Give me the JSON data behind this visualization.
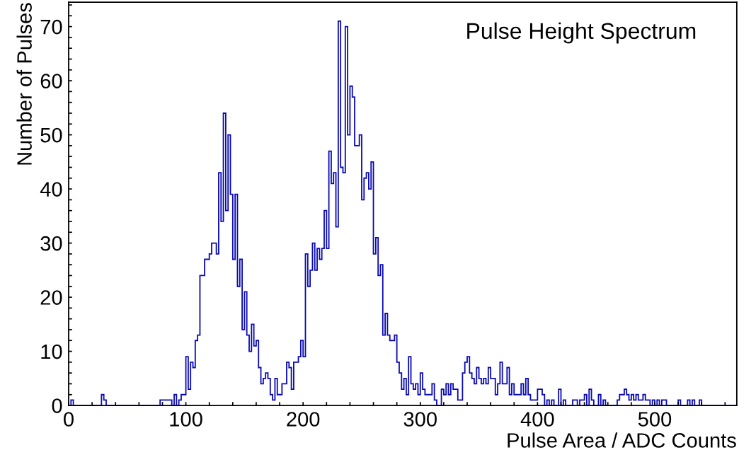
{
  "chart_data": {
    "type": "histogram",
    "title": "Pulse Height Spectrum",
    "xlabel": "Pulse Area / ADC Counts",
    "ylabel": "Number of Pulses",
    "color": "#0a0ab4",
    "bins": [
      0,
      2,
      4,
      6,
      8,
      10,
      12,
      14,
      16,
      18,
      20,
      22,
      24,
      26,
      28,
      30,
      32,
      34,
      36,
      38,
      40,
      42,
      44,
      46,
      48,
      50,
      52,
      54,
      56,
      58,
      60,
      62,
      64,
      66,
      68,
      70,
      72,
      74,
      76,
      78,
      80,
      82,
      84,
      86,
      88,
      90,
      92,
      94,
      96,
      98,
      100,
      102,
      104,
      106,
      108,
      110,
      112,
      114,
      116,
      118,
      120,
      122,
      124,
      126,
      128,
      130,
      132,
      134,
      136,
      138,
      140,
      142,
      144,
      146,
      148,
      150,
      152,
      154,
      156,
      158,
      160,
      162,
      164,
      166,
      168,
      170,
      172,
      174,
      176,
      178,
      180,
      182,
      184,
      186,
      188,
      190,
      192,
      194,
      196,
      198,
      200,
      202,
      204,
      206,
      208,
      210,
      212,
      214,
      216,
      218,
      220,
      222,
      224,
      226,
      228,
      230,
      232,
      234,
      236,
      238,
      240,
      242,
      244,
      246,
      248,
      250,
      252,
      254,
      256,
      258,
      260,
      262,
      264,
      266,
      268,
      270,
      272,
      274,
      276,
      278,
      280,
      282,
      284,
      286,
      288,
      290,
      292,
      294,
      296,
      298,
      300,
      302,
      304,
      306,
      308,
      310,
      312,
      314,
      316,
      318,
      320,
      322,
      324,
      326,
      328,
      330,
      332,
      334,
      336,
      338,
      340,
      342,
      344,
      346,
      348,
      350,
      352,
      354,
      356,
      358,
      360,
      362,
      364,
      366,
      368,
      370,
      372,
      374,
      376,
      378,
      380,
      382,
      384,
      386,
      388,
      390,
      392,
      394,
      396,
      398,
      400,
      402,
      404,
      406,
      408,
      410,
      412,
      414,
      416,
      418,
      420,
      422,
      424,
      426,
      428,
      430,
      432,
      434,
      436,
      438,
      440,
      442,
      444,
      446,
      448,
      450,
      452,
      454,
      456,
      458,
      460,
      462,
      464,
      466,
      468,
      470,
      472,
      474,
      476,
      478,
      480,
      482,
      484,
      486,
      488,
      490,
      492,
      494,
      496,
      498,
      500,
      502,
      504,
      506,
      508,
      510,
      512,
      514,
      516,
      518,
      520,
      522,
      524,
      526,
      528,
      530,
      532,
      534,
      536,
      538,
      540,
      542,
      544,
      546,
      548,
      550,
      552,
      554,
      556,
      558,
      560,
      562,
      564,
      566,
      568,
      570
    ],
    "values": [
      0,
      1,
      0,
      0,
      0,
      0,
      0,
      0,
      0,
      0,
      0,
      0,
      0,
      0,
      2,
      1,
      0,
      0,
      0,
      0,
      0,
      0,
      0,
      0,
      0,
      0,
      0,
      0,
      0,
      0,
      0,
      0,
      0,
      0,
      0,
      0,
      0,
      0,
      0,
      1,
      1,
      1,
      1,
      1,
      0,
      2,
      0,
      1,
      2,
      2,
      9,
      3,
      8,
      7,
      12,
      13,
      24,
      24,
      27,
      27,
      28,
      30,
      30,
      28,
      43,
      34,
      54,
      36,
      50,
      39,
      27,
      39,
      22,
      27,
      14,
      21,
      13,
      10,
      15,
      11,
      12,
      7,
      4,
      5,
      6,
      5,
      2,
      1,
      5,
      2,
      2,
      4,
      4,
      8,
      7,
      3,
      8,
      8,
      9,
      12,
      9,
      28,
      22,
      25,
      30,
      25,
      29,
      27,
      29,
      36,
      29,
      47,
      41,
      43,
      33,
      71,
      44,
      43,
      70,
      50,
      59,
      57,
      48,
      48,
      50,
      38,
      42,
      43,
      40,
      45,
      28,
      31,
      24,
      26,
      13,
      17,
      13,
      12,
      12,
      13,
      8,
      6,
      3,
      5,
      2,
      9,
      4,
      3,
      4,
      2,
      6,
      3,
      2,
      2,
      2,
      4,
      1,
      0,
      0,
      3,
      2,
      4,
      2,
      4,
      3,
      3,
      1,
      1,
      6,
      8,
      9,
      6,
      5,
      4,
      7,
      5,
      4,
      5,
      4,
      7,
      5,
      5,
      2,
      4,
      8,
      4,
      4,
      7,
      2,
      4,
      2,
      2,
      2,
      4,
      2,
      5,
      2,
      1,
      1,
      1,
      3,
      3,
      2,
      0,
      1,
      0,
      1,
      0,
      0,
      3,
      0,
      1,
      0,
      0,
      0,
      1,
      1,
      0,
      1,
      1,
      2,
      0,
      3,
      1,
      0,
      0,
      2,
      0,
      1,
      0,
      0,
      0,
      0,
      0,
      1,
      2,
      2,
      3,
      2,
      1,
      2,
      1,
      2,
      1,
      1,
      2,
      1,
      1,
      0,
      1,
      0,
      1,
      0,
      1,
      1,
      0,
      0,
      0,
      0,
      0,
      1,
      0,
      0,
      0,
      1,
      0,
      1,
      0,
      0,
      1,
      0,
      0,
      0,
      0,
      0,
      0,
      0,
      0,
      0,
      0,
      0,
      0,
      0,
      0,
      0
    ],
    "xlim": [
      0,
      570
    ],
    "ylim": [
      0,
      74.5
    ],
    "xticks": [
      0,
      {
        "value": 20,
        "label": null
      },
      {
        "value": 40,
        "label": null
      },
      {
        "value": 60,
        "label": null
      },
      {
        "value": 80,
        "label": null
      },
      100,
      {
        "value": 120,
        "label": null
      },
      {
        "value": 140,
        "label": null
      },
      {
        "value": 160,
        "label": null
      },
      {
        "value": 180,
        "label": null
      },
      200,
      {
        "value": 220,
        "label": null
      },
      {
        "value": 240,
        "label": null
      },
      {
        "value": 260,
        "label": null
      },
      {
        "value": 280,
        "label": null
      },
      300,
      {
        "value": 320,
        "label": null
      },
      {
        "value": 340,
        "label": null
      },
      {
        "value": 360,
        "label": null
      },
      {
        "value": 380,
        "label": null
      },
      400,
      {
        "value": 420,
        "label": null
      },
      {
        "value": 440,
        "label": null
      },
      {
        "value": 460,
        "label": null
      },
      {
        "value": 480,
        "label": null
      },
      500,
      {
        "value": 520,
        "label": null
      },
      {
        "value": 540,
        "label": null
      },
      {
        "value": 560,
        "label": null
      }
    ],
    "yticks": [
      0,
      {
        "value": 2,
        "label": null
      },
      {
        "value": 4,
        "label": null
      },
      {
        "value": 6,
        "label": null
      },
      {
        "value": 8,
        "label": null
      },
      10,
      {
        "value": 12,
        "label": null
      },
      {
        "value": 14,
        "label": null
      },
      {
        "value": 16,
        "label": null
      },
      {
        "value": 18,
        "label": null
      },
      20,
      {
        "value": 22,
        "label": null
      },
      {
        "value": 24,
        "label": null
      },
      {
        "value": 26,
        "label": null
      },
      {
        "value": 28,
        "label": null
      },
      30,
      {
        "value": 32,
        "label": null
      },
      {
        "value": 34,
        "label": null
      },
      {
        "value": 36,
        "label": null
      },
      {
        "value": 38,
        "label": null
      },
      40,
      {
        "value": 42,
        "label": null
      },
      {
        "value": 44,
        "label": null
      },
      {
        "value": 46,
        "label": null
      },
      {
        "value": 48,
        "label": null
      },
      50,
      {
        "value": 52,
        "label": null
      },
      {
        "value": 54,
        "label": null
      },
      {
        "value": 56,
        "label": null
      },
      {
        "value": 58,
        "label": null
      },
      60,
      {
        "value": 62,
        "label": null
      },
      {
        "value": 64,
        "label": null
      },
      {
        "value": 66,
        "label": null
      },
      {
        "value": 68,
        "label": null
      },
      70,
      {
        "value": 72,
        "label": null
      },
      {
        "value": 74,
        "label": null
      }
    ]
  }
}
